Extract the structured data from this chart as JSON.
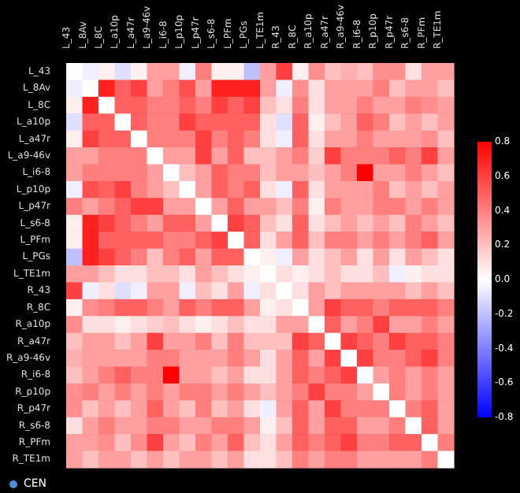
{
  "chart_data": {
    "type": "heatmap",
    "categories": [
      "L_43",
      "L_8Av",
      "L_8C",
      "L_a10p",
      "L_a47r",
      "L_a9-46v",
      "L_i6-8",
      "L_p10p",
      "L_p47r",
      "L_s6-8",
      "L_PFm",
      "L_PGs",
      "L_TE1m",
      "R_43",
      "R_8C",
      "R_a10p",
      "R_a47r",
      "R_a9-46v",
      "R_i6-8",
      "R_p10p",
      "R_p47r",
      "R_s6-8",
      "R_PFm",
      "R_TE1m"
    ],
    "y_categories": [
      "L_43",
      "L_8Av",
      "L_8C",
      "L_a10p",
      "L_a47r",
      "L_a9-46v",
      "L_i6-8",
      "L_p10p",
      "L_p47r",
      "L_s6-8",
      "L_PFm",
      "L_PGs",
      "L_TE1m",
      "R_43",
      "R_8C",
      "R_a10p",
      "R_a47r",
      "R_a9-46v",
      "R_i6-8",
      "R_p10p",
      "R_p47r",
      "R_s6-8",
      "R_PFm",
      "R_TE1m"
    ],
    "cells": [
      [
        0,
        -0.05,
        0.05,
        -0.1,
        0.05,
        0.3,
        0.3,
        -0.05,
        0.4,
        0.05,
        0.05,
        -0.2,
        0.3,
        0.6,
        0.05,
        0.35,
        0.2,
        0.25,
        0.2,
        0.35,
        0.35,
        0.1,
        0.3,
        0.3
      ],
      [
        -0.05,
        0,
        0.7,
        0.5,
        0.6,
        0.3,
        0.4,
        0.55,
        0.3,
        0.7,
        0.7,
        0.7,
        0.3,
        -0.05,
        0.35,
        0.1,
        0.3,
        0.3,
        0.3,
        0.4,
        0.2,
        0.3,
        0.3,
        0.2
      ],
      [
        0.05,
        0.7,
        0,
        0.5,
        0.5,
        0.4,
        0.4,
        0.5,
        0.4,
        0.6,
        0.5,
        0.6,
        0.2,
        0.1,
        0.4,
        0.1,
        0.3,
        0.3,
        0.4,
        0.3,
        0.3,
        0.4,
        0.35,
        0.3
      ],
      [
        -0.1,
        0.5,
        0.5,
        0,
        0.5,
        0.4,
        0.4,
        0.6,
        0.5,
        0.5,
        0.5,
        0.5,
        0.1,
        -0.1,
        0.5,
        0.05,
        0.2,
        0.3,
        0.5,
        0.4,
        0.2,
        0.3,
        0.2,
        0.3
      ],
      [
        0.05,
        0.6,
        0.5,
        0.5,
        0,
        0.4,
        0.4,
        0.4,
        0.6,
        0.4,
        0.5,
        0.4,
        0.1,
        -0.05,
        0.5,
        0.1,
        0.3,
        0.3,
        0.4,
        0.3,
        0.3,
        0.3,
        0.35,
        0.2
      ],
      [
        0.3,
        0.3,
        0.4,
        0.4,
        0.4,
        0,
        0.3,
        0.3,
        0.6,
        0.3,
        0.5,
        0.2,
        0.2,
        0.3,
        0.4,
        0.15,
        0.6,
        0.4,
        0.4,
        0.4,
        0.5,
        0.4,
        0.6,
        0.3
      ],
      [
        0.3,
        0.4,
        0.4,
        0.4,
        0.4,
        0.3,
        0,
        0.2,
        0.3,
        0.5,
        0.4,
        0.4,
        0.2,
        0.3,
        0.3,
        0.2,
        0.3,
        0.4,
        0.8,
        0.3,
        0.3,
        0.4,
        0.3,
        0.2
      ],
      [
        -0.05,
        0.55,
        0.5,
        0.6,
        0.4,
        0.3,
        0.2,
        0,
        0.3,
        0.5,
        0.4,
        0.5,
        0.1,
        -0.05,
        0.5,
        0.1,
        0.3,
        0.3,
        0.3,
        0.4,
        0.2,
        0.3,
        0.2,
        0.3
      ],
      [
        0.4,
        0.3,
        0.4,
        0.5,
        0.6,
        0.6,
        0.3,
        0.3,
        0,
        0.3,
        0.5,
        0.3,
        0.3,
        0.2,
        0.4,
        0.05,
        0.4,
        0.3,
        0.3,
        0.4,
        0.4,
        0.3,
        0.4,
        0.3
      ],
      [
        0.05,
        0.7,
        0.6,
        0.5,
        0.4,
        0.3,
        0.5,
        0.5,
        0.3,
        0,
        0.6,
        0.5,
        0.2,
        0.1,
        0.5,
        0.1,
        0.2,
        0.3,
        0.2,
        0.3,
        0.2,
        0.4,
        0.3,
        0.2
      ],
      [
        0.05,
        0.7,
        0.5,
        0.5,
        0.5,
        0.5,
        0.4,
        0.4,
        0.5,
        0.6,
        0,
        0.5,
        0.1,
        0.3,
        0.5,
        0.2,
        0.4,
        0.4,
        0.3,
        0.4,
        0.3,
        0.4,
        0.5,
        0.3
      ],
      [
        -0.2,
        0.7,
        0.6,
        0.5,
        0.4,
        0.2,
        0.4,
        0.5,
        0.3,
        0.5,
        0.5,
        0,
        0.05,
        -0.05,
        0.3,
        0.1,
        0.2,
        0.3,
        0.1,
        0.3,
        0.1,
        0.3,
        0.2,
        0.1
      ],
      [
        0.3,
        0.3,
        0.2,
        0.1,
        0.1,
        0.2,
        0.2,
        0.1,
        0.3,
        0.2,
        0.1,
        0.05,
        0,
        0.1,
        0.05,
        0.1,
        0.2,
        0.1,
        0.1,
        0.2,
        -0.05,
        0.05,
        0.1,
        0.1
      ],
      [
        0.6,
        -0.05,
        0.1,
        -0.1,
        -0.05,
        0.3,
        0.3,
        -0.05,
        0.2,
        0.1,
        0.3,
        -0.05,
        0.1,
        0,
        0.1,
        0.3,
        0.2,
        0.3,
        0.3,
        0.3,
        0.3,
        0.2,
        0.3,
        0.2
      ],
      [
        0.05,
        0.35,
        0.4,
        0.5,
        0.5,
        0.4,
        0.3,
        0.5,
        0.4,
        0.5,
        0.5,
        0.3,
        0.05,
        0.1,
        0,
        0.3,
        0.6,
        0.5,
        0.5,
        0.4,
        0.5,
        0.5,
        0.5,
        0.4
      ],
      [
        0.35,
        0.1,
        0.1,
        0.05,
        0.1,
        0.15,
        0.2,
        0.1,
        0.05,
        0.1,
        0.2,
        0.1,
        0.1,
        0.3,
        0.3,
        0,
        0.5,
        0.3,
        0.4,
        0.6,
        0.3,
        0.3,
        0.4,
        0.3
      ],
      [
        0.2,
        0.3,
        0.3,
        0.2,
        0.3,
        0.6,
        0.3,
        0.3,
        0.4,
        0.2,
        0.4,
        0.2,
        0.2,
        0.2,
        0.6,
        0.5,
        0,
        0.6,
        0.5,
        0.4,
        0.6,
        0.5,
        0.5,
        0.4
      ],
      [
        0.25,
        0.3,
        0.3,
        0.3,
        0.3,
        0.4,
        0.4,
        0.3,
        0.3,
        0.3,
        0.4,
        0.3,
        0.1,
        0.3,
        0.5,
        0.3,
        0.6,
        0,
        0.6,
        0.4,
        0.4,
        0.5,
        0.6,
        0.4
      ],
      [
        0.2,
        0.3,
        0.4,
        0.5,
        0.4,
        0.4,
        0.8,
        0.3,
        0.3,
        0.2,
        0.3,
        0.1,
        0.1,
        0.3,
        0.5,
        0.4,
        0.5,
        0.6,
        0,
        0.3,
        0.4,
        0.3,
        0.4,
        0.3
      ],
      [
        0.35,
        0.4,
        0.3,
        0.4,
        0.3,
        0.4,
        0.3,
        0.4,
        0.4,
        0.3,
        0.4,
        0.3,
        0.2,
        0.3,
        0.4,
        0.6,
        0.4,
        0.4,
        0.3,
        0,
        0.4,
        0.3,
        0.4,
        0.3
      ],
      [
        0.35,
        0.2,
        0.3,
        0.2,
        0.3,
        0.5,
        0.3,
        0.2,
        0.4,
        0.2,
        0.3,
        0.1,
        -0.05,
        0.3,
        0.5,
        0.3,
        0.6,
        0.4,
        0.4,
        0.4,
        0,
        0.4,
        0.5,
        0.3
      ],
      [
        0.1,
        0.3,
        0.4,
        0.3,
        0.3,
        0.4,
        0.4,
        0.3,
        0.3,
        0.4,
        0.4,
        0.3,
        0.05,
        0.2,
        0.5,
        0.3,
        0.5,
        0.5,
        0.3,
        0.3,
        0.4,
        0,
        0.5,
        0.3
      ],
      [
        0.3,
        0.3,
        0.35,
        0.2,
        0.35,
        0.6,
        0.3,
        0.2,
        0.4,
        0.3,
        0.5,
        0.2,
        0.1,
        0.3,
        0.5,
        0.4,
        0.5,
        0.6,
        0.4,
        0.4,
        0.5,
        0.5,
        0,
        0.4
      ],
      [
        0.3,
        0.2,
        0.3,
        0.3,
        0.2,
        0.3,
        0.2,
        0.3,
        0.3,
        0.2,
        0.3,
        0.1,
        0.1,
        0.2,
        0.4,
        0.3,
        0.4,
        0.4,
        0.3,
        0.3,
        0.3,
        0.3,
        0.4,
        0
      ]
    ],
    "clim": [
      -0.8,
      0.8
    ],
    "cticks": [
      0.8,
      0.6,
      0.4,
      0.2,
      {
        "value": 0,
        "label": "0.0"
      },
      -0.2,
      -0.4,
      -0.6,
      -0.8
    ],
    "annotations": [
      "CEN"
    ]
  }
}
